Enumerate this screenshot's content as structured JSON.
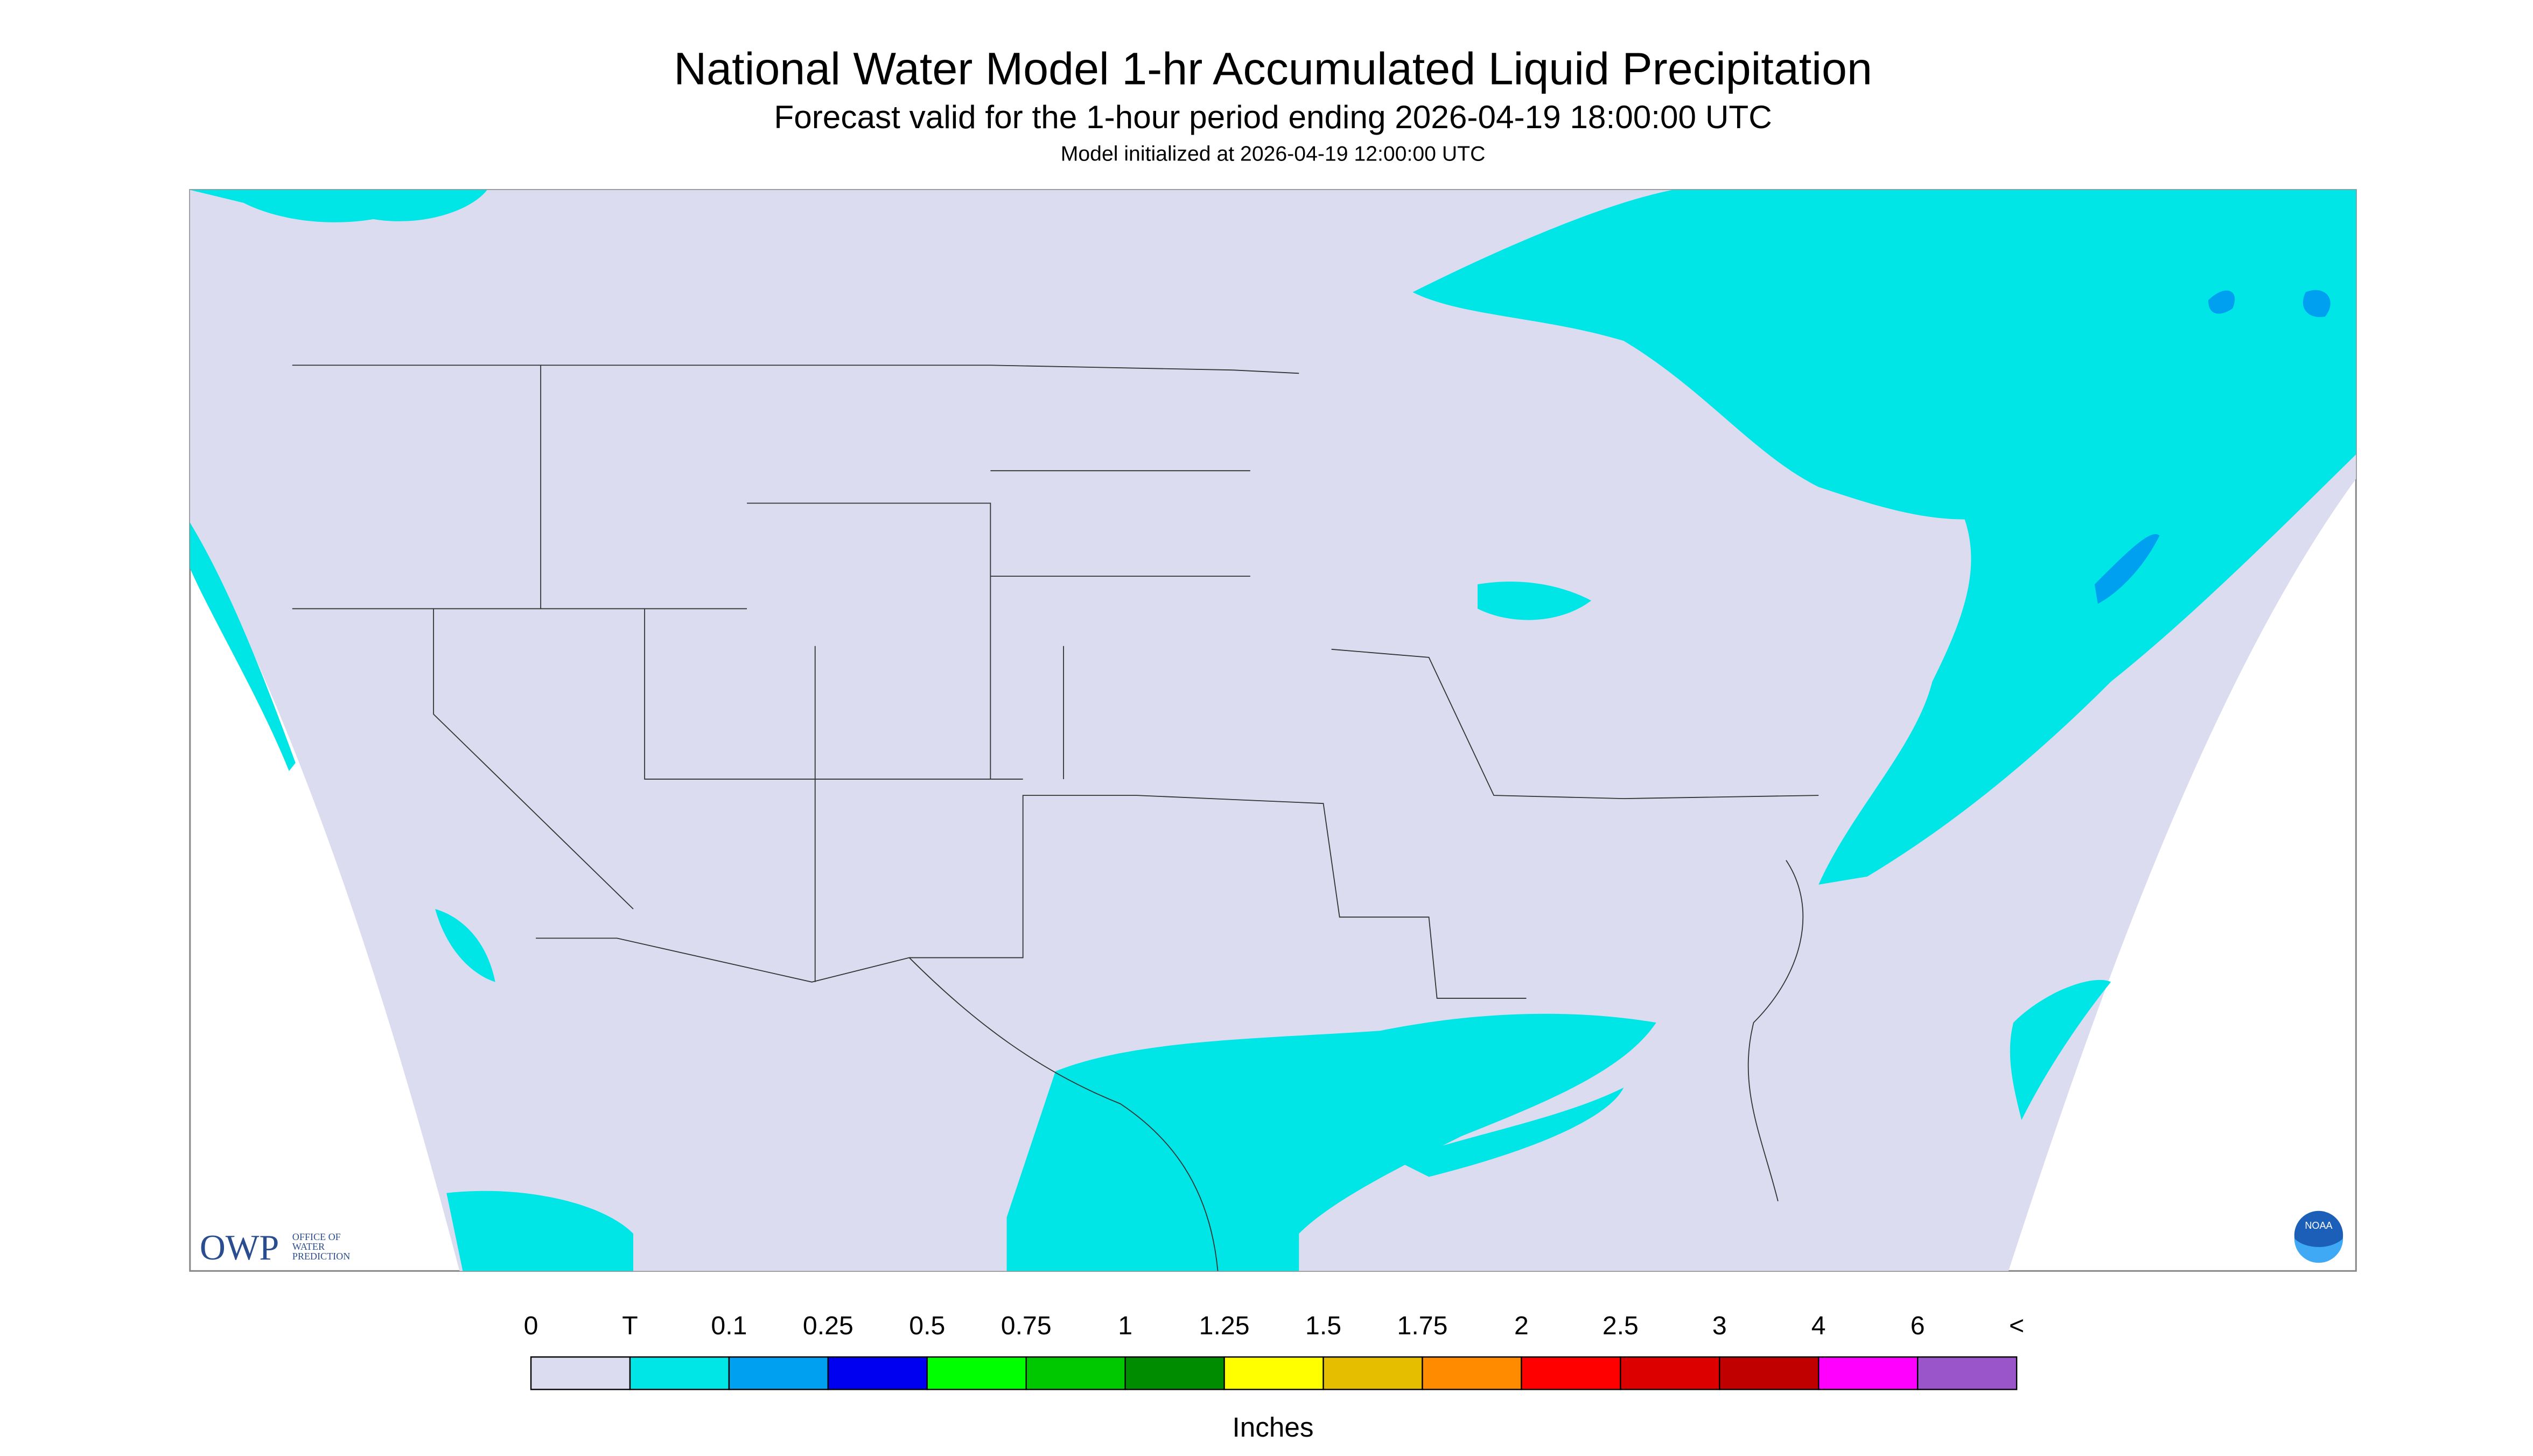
{
  "header": {
    "title": "National Water Model 1-hr Accumulated Liquid Precipitation",
    "subtitle": "Forecast valid for the 1-hour period ending 2026-04-19 18:00:00 UTC",
    "note": "Model initialized at 2026-04-19 12:00:00 UTC"
  },
  "logo": {
    "owp": "OWP",
    "owp_lines": [
      "OFFICE OF",
      "WATER",
      "PREDICTION"
    ],
    "noaa": "NOAA"
  },
  "legend": {
    "unit": "Inches",
    "labels": [
      "0",
      "T",
      "0.1",
      "0.25",
      "0.5",
      "0.75",
      "1",
      "1.25",
      "1.5",
      "1.75",
      "2",
      "2.5",
      "3",
      "4",
      "6",
      "<"
    ],
    "colors": [
      "#dcdcf0",
      "#00e6e6",
      "#00a0f0",
      "#0000f0",
      "#00ff00",
      "#00c800",
      "#008c00",
      "#ffff00",
      "#e6be00",
      "#ff8c00",
      "#ff0000",
      "#dc0000",
      "#c00000",
      "#ff00ff",
      "#9955c9"
    ]
  }
}
